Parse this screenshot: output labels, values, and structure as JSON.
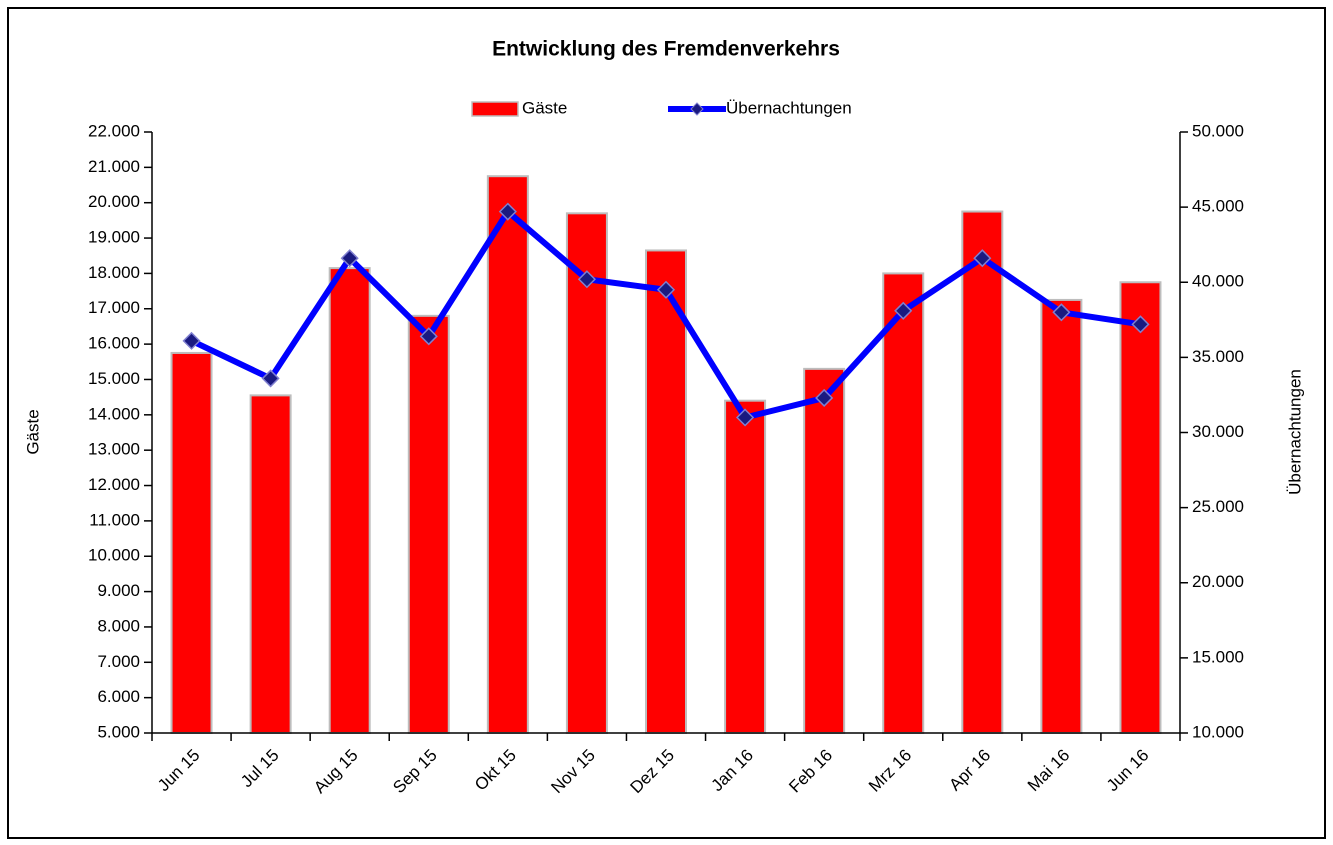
{
  "chart_data": {
    "type": "combo",
    "title": "Entwicklung des Fremdenverkehrs",
    "categories": [
      "Jun 15",
      "Jul 15",
      "Aug 15",
      "Sep 15",
      "Okt 15",
      "Nov 15",
      "Dez 15",
      "Jan 16",
      "Feb 16",
      "Mrz 16",
      "Apr 16",
      "Mai 16",
      "Jun 16"
    ],
    "series": [
      {
        "name": "Gäste",
        "type": "bar",
        "color": "#ff0000",
        "values": [
          15750,
          14550,
          18150,
          16800,
          20750,
          19700,
          18650,
          14400,
          15300,
          18000,
          19750,
          17250,
          17750
        ]
      },
      {
        "name": "Übernachtungen",
        "type": "line",
        "axis": "y2",
        "color": "#0000ff",
        "marker_color": "#1a1a80",
        "values": [
          36100,
          33600,
          41600,
          36400,
          44700,
          40200,
          39500,
          31000,
          32300,
          38100,
          41600,
          38000,
          37200
        ]
      }
    ],
    "ylabel": "Gäste",
    "y2label": "Übernachtungen",
    "ylim": [
      5000,
      22000
    ],
    "yticks": [
      {
        "value": 5000,
        "label": "5.000"
      },
      {
        "value": 6000,
        "label": "6.000"
      },
      {
        "value": 7000,
        "label": "7.000"
      },
      {
        "value": 8000,
        "label": "8.000"
      },
      {
        "value": 9000,
        "label": "9.000"
      },
      {
        "value": 10000,
        "label": "10.000"
      },
      {
        "value": 11000,
        "label": "11.000"
      },
      {
        "value": 12000,
        "label": "12.000"
      },
      {
        "value": 13000,
        "label": "13.000"
      },
      {
        "value": 14000,
        "label": "14.000"
      },
      {
        "value": 15000,
        "label": "15.000"
      },
      {
        "value": 16000,
        "label": "16.000"
      },
      {
        "value": 17000,
        "label": "17.000"
      },
      {
        "value": 18000,
        "label": "18.000"
      },
      {
        "value": 19000,
        "label": "19.000"
      },
      {
        "value": 20000,
        "label": "20.000"
      },
      {
        "value": 21000,
        "label": "21.000"
      },
      {
        "value": 22000,
        "label": "22.000"
      }
    ],
    "y2lim": [
      10000,
      50000
    ],
    "y2ticks": [
      {
        "value": 10000,
        "label": "10.000"
      },
      {
        "value": 15000,
        "label": "15.000"
      },
      {
        "value": 20000,
        "label": "20.000"
      },
      {
        "value": 25000,
        "label": "25.000"
      },
      {
        "value": 30000,
        "label": "30.000"
      },
      {
        "value": 35000,
        "label": "35.000"
      },
      {
        "value": 40000,
        "label": "40.000"
      },
      {
        "value": 45000,
        "label": "45.000"
      },
      {
        "value": 50000,
        "label": "50.000"
      }
    ],
    "legend": "top",
    "grid": false
  }
}
